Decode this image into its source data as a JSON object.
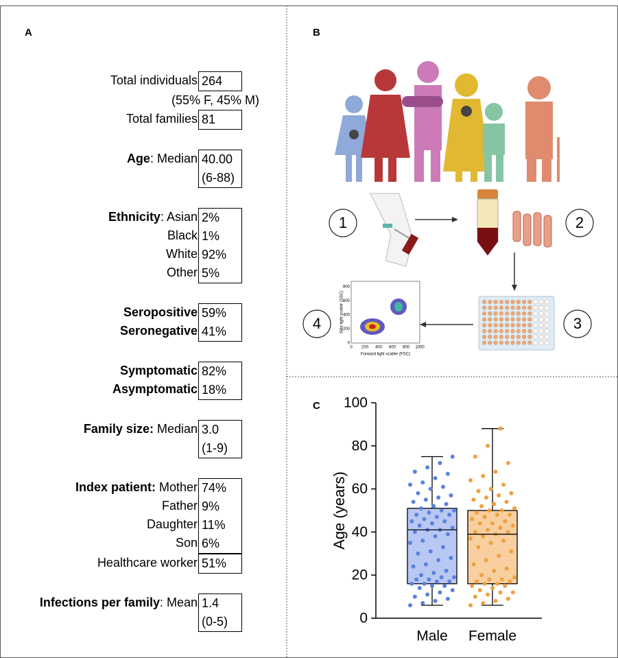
{
  "panel_a": {
    "label": "A",
    "sections": [
      [
        {
          "lines": [
            {
              "text": "Total individuals",
              "value": "264"
            }
          ],
          "note": "(55% F, 45% M)"
        },
        {
          "lines": [
            {
              "text": "Total families",
              "value": "81"
            }
          ]
        }
      ],
      [
        {
          "lines": [
            {
              "bold": "Age",
              "text": ": Median",
              "value": "40.00"
            },
            {
              "value": "(6-88)"
            }
          ]
        }
      ],
      [
        {
          "lines": [
            {
              "bold": "Ethnicity",
              "text": ": Asian",
              "value": "2%"
            },
            {
              "text": "Black",
              "value": "1%"
            },
            {
              "text": "White",
              "value": "92%"
            },
            {
              "text": "Other",
              "value": "5%"
            }
          ]
        }
      ],
      [
        {
          "lines": [
            {
              "bold": "Seropositive",
              "value": "59%"
            },
            {
              "bold": "Seronegative",
              "value": "41%"
            }
          ]
        }
      ],
      [
        {
          "lines": [
            {
              "bold": "Symptomatic",
              "value": "82%"
            },
            {
              "bold": "Asymptomatic",
              "value": "18%"
            }
          ]
        }
      ],
      [
        {
          "lines": [
            {
              "bold": "Family size:",
              "text": " Median",
              "value": "3.0"
            },
            {
              "value": "(1-9)"
            }
          ]
        }
      ],
      [
        {
          "lines": [
            {
              "bold": "Index patient:",
              "text": " Mother",
              "value": "74%"
            },
            {
              "text": "Father",
              "value": "9%"
            },
            {
              "text": "Daughter",
              "value": "11%"
            },
            {
              "text": "Son",
              "value": "6%"
            }
          ]
        },
        {
          "lines": [
            {
              "text": "Healthcare worker",
              "value": "51%"
            }
          ]
        }
      ],
      [
        {
          "lines": [
            {
              "bold": "Infections per family",
              "text": ": Mean",
              "value": "1.4"
            },
            {
              "value": "(0-5)"
            }
          ]
        }
      ]
    ]
  },
  "panel_b": {
    "label": "B",
    "steps": [
      "1",
      "2",
      "3",
      "4"
    ],
    "flow_plot": {
      "x_label": "Forward light scatter (FSC)",
      "y_label": "Side light scatter (SSC)",
      "xticks": [
        0,
        200,
        400,
        600,
        800,
        1000
      ],
      "yticks": [
        0,
        200,
        400,
        600,
        800
      ]
    }
  },
  "chart_data": {
    "type": "box",
    "panel_label": "C",
    "y_label": "Age (years)",
    "categories": [
      "Male",
      "Female"
    ],
    "ylim": [
      0,
      100
    ],
    "yticks": [
      0,
      20,
      40,
      60,
      80,
      100
    ],
    "series": [
      {
        "color": "#5b82e0",
        "fill": "#b9c8f2",
        "whisker_low": 6,
        "q1": 16,
        "median": 41,
        "q3": 51,
        "whisker_high": 75,
        "values": [
          6,
          7,
          8,
          9,
          10,
          11,
          12,
          13,
          14,
          15,
          15,
          16,
          16,
          17,
          17,
          18,
          18,
          19,
          19,
          20,
          21,
          22,
          24,
          25,
          27,
          28,
          30,
          31,
          33,
          35,
          36,
          38,
          39,
          40,
          41,
          41,
          42,
          43,
          44,
          45,
          45,
          46,
          47,
          48,
          48,
          49,
          50,
          50,
          51,
          52,
          53,
          54,
          55,
          56,
          57,
          58,
          60,
          61,
          62,
          63,
          65,
          67,
          68,
          70,
          72,
          75
        ]
      },
      {
        "color": "#f0a040",
        "fill": "#f8cf9f",
        "whisker_low": 6,
        "q1": 16,
        "median": 39,
        "q3": 50,
        "whisker_high": 88,
        "values": [
          6,
          7,
          8,
          9,
          10,
          11,
          12,
          12,
          13,
          14,
          15,
          15,
          16,
          16,
          17,
          17,
          18,
          18,
          19,
          20,
          22,
          23,
          25,
          27,
          29,
          31,
          33,
          35,
          36,
          37,
          38,
          39,
          40,
          40,
          41,
          42,
          43,
          44,
          44,
          45,
          46,
          47,
          48,
          48,
          49,
          50,
          50,
          51,
          52,
          53,
          54,
          55,
          56,
          57,
          58,
          59,
          60,
          62,
          64,
          66,
          68,
          72,
          75,
          80,
          88
        ]
      }
    ]
  }
}
